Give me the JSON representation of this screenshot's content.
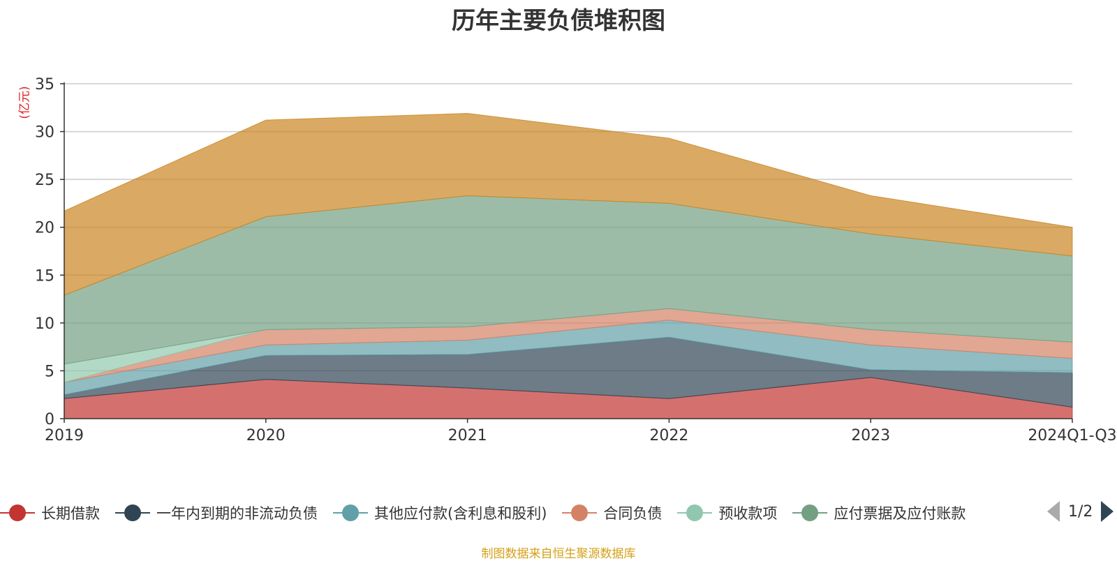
{
  "chart_data": {
    "type": "area",
    "title": "历年主要负债堆积图",
    "ylabel": "(亿元)",
    "xlabel": "",
    "categories": [
      "2019",
      "2020",
      "2021",
      "2022",
      "2023",
      "2024Q1-Q3"
    ],
    "ylim": [
      0,
      35
    ],
    "yticks": [
      "0",
      "5",
      "10",
      "15",
      "20",
      "25",
      "30",
      "35"
    ],
    "stacked": true,
    "grid": true,
    "legend_position": "bottom",
    "series": [
      {
        "name": "长期借款",
        "color": "#c23531",
        "values": [
          2.1,
          4.1,
          3.2,
          2.1,
          4.3,
          1.2
        ]
      },
      {
        "name": "一年内到期的非流动负债",
        "color": "#2f4554",
        "values": [
          0.4,
          2.5,
          3.5,
          6.4,
          0.8,
          3.6
        ]
      },
      {
        "name": "其他应付款(含利息和股利)",
        "color": "#61a0a8",
        "values": [
          1.3,
          1.1,
          1.5,
          1.8,
          2.6,
          1.5
        ]
      },
      {
        "name": "合同负债",
        "color": "#d48265",
        "values": [
          0.0,
          1.6,
          1.4,
          1.2,
          1.6,
          1.7
        ]
      },
      {
        "name": "预收款项",
        "color": "#91c7ae",
        "values": [
          1.9,
          0.0,
          0.0,
          0.0,
          0.0,
          0.0
        ]
      },
      {
        "name": "应付票据及应付账款",
        "color": "#749f83",
        "values": [
          7.2,
          11.8,
          13.7,
          11.0,
          10.0,
          9.0
        ]
      },
      {
        "name": "",
        "color": "#ca8622",
        "values": [
          8.8,
          10.1,
          8.6,
          6.8,
          4.0,
          3.0
        ]
      }
    ]
  },
  "legend": {
    "items": [
      "长期借款",
      "一年内到期的非流动负债",
      "其他应付款(含利息和股利)",
      "合同负债",
      "预收款项",
      "应付票据及应付账款"
    ],
    "page": "1/2"
  },
  "source_note": "制图数据来自恒生聚源数据库"
}
